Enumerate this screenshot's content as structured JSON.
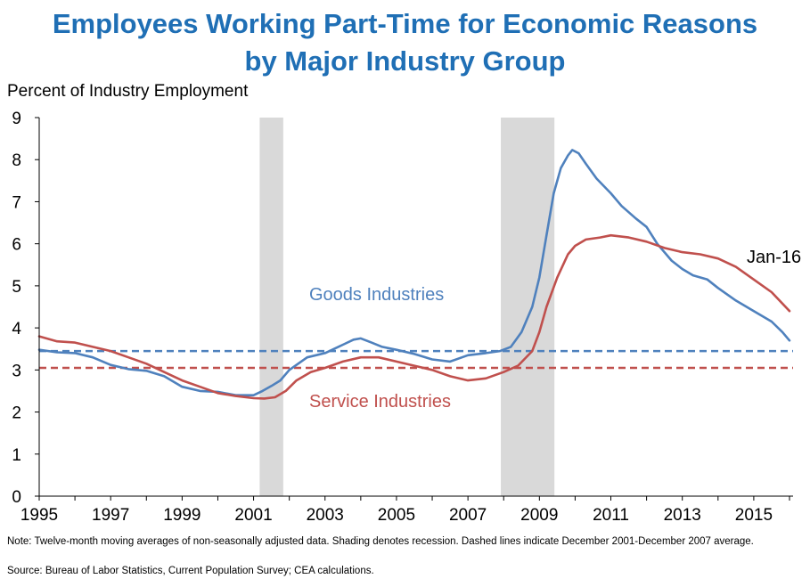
{
  "chart_data": {
    "type": "line",
    "title": "Employees Working Part-Time for Economic Reasons",
    "subtitle": "by Major Industry Group",
    "ylabel": "Percent of Industry Employment",
    "xlabel": "",
    "xlim": [
      1995,
      2016.1
    ],
    "ylim": [
      0,
      9
    ],
    "x_ticks": [
      "1995",
      "1997",
      "1999",
      "2001",
      "2003",
      "2005",
      "2007",
      "2009",
      "2011",
      "2013",
      "2015"
    ],
    "y_ticks": [
      "0",
      "1",
      "2",
      "3",
      "4",
      "5",
      "6",
      "7",
      "8",
      "9"
    ],
    "grid": false,
    "recessions": [
      [
        2001.17,
        2001.83
      ],
      [
        2007.92,
        2009.42
      ]
    ],
    "series": [
      {
        "name": "Goods Industries",
        "color": "#4f81bd",
        "points": [
          [
            1995.0,
            3.48
          ],
          [
            1995.5,
            3.42
          ],
          [
            1996.0,
            3.4
          ],
          [
            1996.5,
            3.3
          ],
          [
            1997.0,
            3.12
          ],
          [
            1997.5,
            3.02
          ],
          [
            1998.0,
            2.98
          ],
          [
            1998.5,
            2.85
          ],
          [
            1999.0,
            2.6
          ],
          [
            1999.5,
            2.5
          ],
          [
            2000.0,
            2.48
          ],
          [
            2000.5,
            2.4
          ],
          [
            2001.0,
            2.4
          ],
          [
            2001.25,
            2.5
          ],
          [
            2001.5,
            2.62
          ],
          [
            2001.75,
            2.75
          ],
          [
            2002.0,
            3.0
          ],
          [
            2002.5,
            3.3
          ],
          [
            2003.0,
            3.4
          ],
          [
            2003.5,
            3.6
          ],
          [
            2003.8,
            3.72
          ],
          [
            2004.0,
            3.75
          ],
          [
            2004.3,
            3.65
          ],
          [
            2004.6,
            3.55
          ],
          [
            2005.0,
            3.48
          ],
          [
            2005.5,
            3.38
          ],
          [
            2006.0,
            3.25
          ],
          [
            2006.5,
            3.2
          ],
          [
            2007.0,
            3.35
          ],
          [
            2007.5,
            3.4
          ],
          [
            2007.9,
            3.45
          ],
          [
            2008.2,
            3.55
          ],
          [
            2008.5,
            3.9
          ],
          [
            2008.8,
            4.5
          ],
          [
            2009.0,
            5.2
          ],
          [
            2009.2,
            6.2
          ],
          [
            2009.4,
            7.2
          ],
          [
            2009.6,
            7.8
          ],
          [
            2009.8,
            8.1
          ],
          [
            2009.92,
            8.23
          ],
          [
            2010.1,
            8.15
          ],
          [
            2010.3,
            7.9
          ],
          [
            2010.6,
            7.55
          ],
          [
            2011.0,
            7.2
          ],
          [
            2011.3,
            6.9
          ],
          [
            2011.7,
            6.6
          ],
          [
            2012.0,
            6.4
          ],
          [
            2012.3,
            6.0
          ],
          [
            2012.7,
            5.6
          ],
          [
            2013.0,
            5.4
          ],
          [
            2013.3,
            5.25
          ],
          [
            2013.7,
            5.15
          ],
          [
            2014.0,
            4.95
          ],
          [
            2014.5,
            4.65
          ],
          [
            2015.0,
            4.4
          ],
          [
            2015.5,
            4.15
          ],
          [
            2015.8,
            3.9
          ],
          [
            2016.0,
            3.7
          ]
        ]
      },
      {
        "name": "Service Industries",
        "color": "#c0504d",
        "points": [
          [
            1995.0,
            3.8
          ],
          [
            1995.5,
            3.68
          ],
          [
            1996.0,
            3.65
          ],
          [
            1996.5,
            3.55
          ],
          [
            1997.0,
            3.45
          ],
          [
            1997.5,
            3.3
          ],
          [
            1998.0,
            3.15
          ],
          [
            1998.5,
            2.95
          ],
          [
            1999.0,
            2.75
          ],
          [
            1999.5,
            2.6
          ],
          [
            2000.0,
            2.45
          ],
          [
            2000.5,
            2.38
          ],
          [
            2001.0,
            2.33
          ],
          [
            2001.3,
            2.32
          ],
          [
            2001.6,
            2.35
          ],
          [
            2001.9,
            2.5
          ],
          [
            2002.2,
            2.75
          ],
          [
            2002.6,
            2.95
          ],
          [
            2003.0,
            3.05
          ],
          [
            2003.5,
            3.2
          ],
          [
            2004.0,
            3.3
          ],
          [
            2004.5,
            3.3
          ],
          [
            2005.0,
            3.2
          ],
          [
            2005.5,
            3.1
          ],
          [
            2006.0,
            3.0
          ],
          [
            2006.5,
            2.85
          ],
          [
            2007.0,
            2.75
          ],
          [
            2007.5,
            2.8
          ],
          [
            2008.0,
            2.95
          ],
          [
            2008.4,
            3.1
          ],
          [
            2008.8,
            3.45
          ],
          [
            2009.0,
            3.9
          ],
          [
            2009.2,
            4.5
          ],
          [
            2009.5,
            5.2
          ],
          [
            2009.8,
            5.75
          ],
          [
            2010.0,
            5.95
          ],
          [
            2010.3,
            6.1
          ],
          [
            2010.7,
            6.15
          ],
          [
            2011.0,
            6.2
          ],
          [
            2011.5,
            6.15
          ],
          [
            2012.0,
            6.05
          ],
          [
            2012.5,
            5.9
          ],
          [
            2013.0,
            5.8
          ],
          [
            2013.5,
            5.75
          ],
          [
            2014.0,
            5.65
          ],
          [
            2014.5,
            5.45
          ],
          [
            2015.0,
            5.15
          ],
          [
            2015.5,
            4.85
          ],
          [
            2016.0,
            4.4
          ]
        ]
      }
    ],
    "reference_lines": [
      {
        "color": "#4f81bd",
        "value": 3.45
      },
      {
        "color": "#c0504d",
        "value": 3.05
      }
    ],
    "annotations": {
      "goods_label": "Goods Industries",
      "service_label": "Service Industries",
      "end_label": "Jan-16"
    }
  },
  "note": "Note: Twelve-month moving averages of non-seasonally adjusted data. Shading denotes recession. Dashed lines indicate December 2001-December 2007 average.",
  "source": "Source: Bureau of Labor Statistics, Current Population Survey; CEA calculations."
}
